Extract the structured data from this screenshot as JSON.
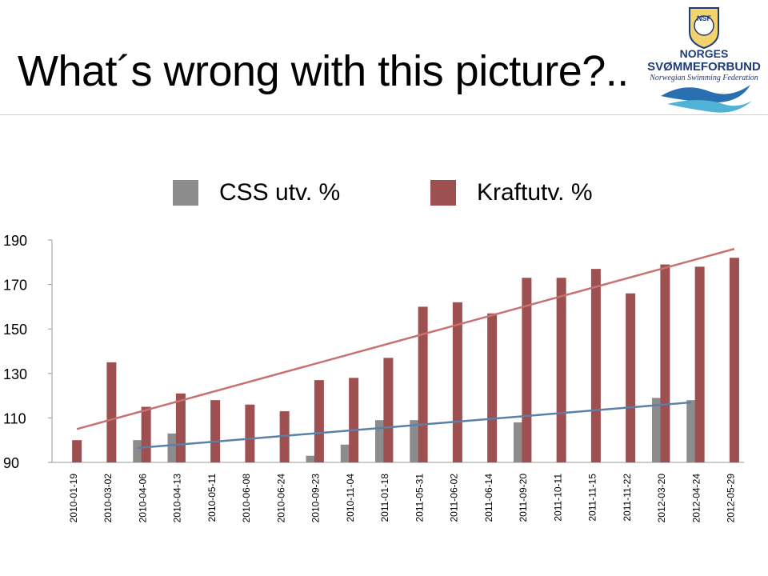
{
  "slide": {
    "title": "What´s wrong with this picture?.."
  },
  "logo": {
    "icon": "nsf-swimming-federation-logo",
    "badge_text": "NSF",
    "line1": "NORGES",
    "line2": "SVØMMEFORBUND",
    "line3": "Norwegian Swimming Federation"
  },
  "colors": {
    "css_bar": "#8c8c8c",
    "kraft_bar": "#9e4f4f",
    "css_trend": "#5b7fa6",
    "kraft_trend": "#c97070"
  },
  "chart_data": {
    "type": "bar",
    "categories": [
      "2010-01-19",
      "2010-03-02",
      "2010-04-06",
      "2010-04-13",
      "2010-05-11",
      "2010-06-08",
      "2010-06-24",
      "2010-09-23",
      "2010-11-04",
      "2011-01-18",
      "2011-05-31",
      "2011-06-02",
      "2011-06-14",
      "2011-09-20",
      "2011-10-11",
      "2011-11-15",
      "2011-11-22",
      "2012-03-20",
      "2012-04-24",
      "2012-05-29"
    ],
    "series": [
      {
        "name": "CSS utv. %",
        "values": [
          null,
          null,
          100,
          103,
          null,
          null,
          null,
          93,
          98,
          109,
          109,
          null,
          null,
          108,
          null,
          null,
          null,
          119,
          118,
          null
        ]
      },
      {
        "name": "Kraftutv. %",
        "values": [
          100,
          135,
          115,
          121,
          118,
          116,
          113,
          127,
          128,
          137,
          160,
          162,
          157,
          173,
          173,
          177,
          166,
          179,
          178,
          182
        ]
      }
    ],
    "trendlines": [
      {
        "series": "CSS utv. %",
        "start_category": "2010-04-06",
        "end_category": "2012-04-24",
        "start_value": 96.5,
        "end_value": 117
      },
      {
        "series": "Kraftutv. %",
        "start_category": "2010-01-19",
        "end_category": "2012-05-29",
        "start_value": 105,
        "end_value": 186
      }
    ],
    "yticks": [
      190,
      170,
      150,
      130,
      110,
      90
    ],
    "ylim": [
      90,
      190
    ],
    "grid": false,
    "legend": "top"
  }
}
